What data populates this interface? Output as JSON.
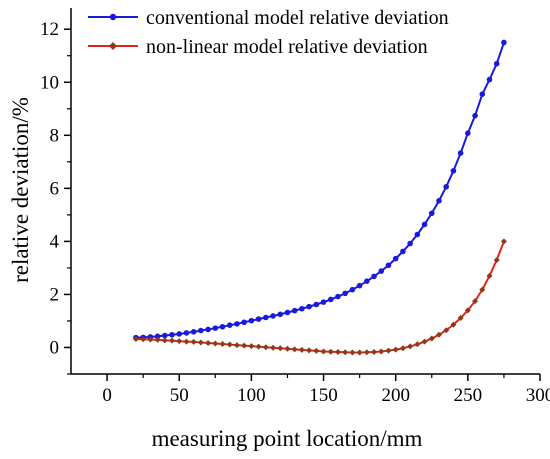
{
  "chart_data": {
    "type": "line",
    "xlabel": "measuring point location/mm",
    "ylabel": "relative deviation/%",
    "xlim": [
      -25,
      300
    ],
    "ylim": [
      -1,
      12.8
    ],
    "xticks": [
      0,
      50,
      100,
      150,
      200,
      250,
      300
    ],
    "yticks": [
      0,
      2,
      4,
      6,
      8,
      10,
      12
    ],
    "xtick_labels": [
      "0",
      "50",
      "100",
      "150",
      "200",
      "250",
      "300"
    ],
    "ytick_labels": [
      "0",
      "2",
      "4",
      "6",
      "8",
      "10",
      "12"
    ],
    "grid": false,
    "legend_position": "top-left",
    "series": [
      {
        "name": "conventional model relative deviation",
        "color": "#1a1adc",
        "marker": "circle",
        "x": [
          20,
          25,
          30,
          35,
          40,
          45,
          50,
          55,
          60,
          65,
          70,
          75,
          80,
          85,
          90,
          95,
          100,
          105,
          110,
          115,
          120,
          125,
          130,
          135,
          140,
          145,
          150,
          155,
          160,
          165,
          170,
          175,
          180,
          185,
          190,
          195,
          200,
          205,
          210,
          215,
          220,
          225,
          230,
          235,
          240,
          245,
          250,
          255,
          260,
          265,
          270,
          275
        ],
        "values": [
          0.37,
          0.38,
          0.4,
          0.42,
          0.45,
          0.48,
          0.51,
          0.55,
          0.59,
          0.64,
          0.68,
          0.73,
          0.78,
          0.84,
          0.89,
          0.95,
          1.01,
          1.07,
          1.13,
          1.19,
          1.25,
          1.32,
          1.39,
          1.46,
          1.54,
          1.62,
          1.71,
          1.81,
          1.92,
          2.04,
          2.18,
          2.33,
          2.5,
          2.68,
          2.88,
          3.1,
          3.35,
          3.62,
          3.92,
          4.26,
          4.64,
          5.06,
          5.53,
          6.06,
          6.66,
          7.33,
          8.08,
          8.74,
          9.55,
          10.1,
          10.7,
          11.5
        ]
      },
      {
        "name": "non-linear model relative deviation",
        "color": "#e0241b",
        "marker_color": "#8b3a1a",
        "marker": "diamond",
        "x": [
          20,
          25,
          30,
          35,
          40,
          45,
          50,
          55,
          60,
          65,
          70,
          75,
          80,
          85,
          90,
          95,
          100,
          105,
          110,
          115,
          120,
          125,
          130,
          135,
          140,
          145,
          150,
          155,
          160,
          165,
          170,
          175,
          180,
          185,
          190,
          195,
          200,
          205,
          210,
          215,
          220,
          225,
          230,
          235,
          240,
          245,
          250,
          255,
          260,
          265,
          270,
          275
        ],
        "values": [
          0.32,
          0.31,
          0.3,
          0.29,
          0.27,
          0.26,
          0.24,
          0.22,
          0.21,
          0.19,
          0.17,
          0.15,
          0.13,
          0.11,
          0.09,
          0.07,
          0.05,
          0.03,
          0.01,
          -0.01,
          -0.03,
          -0.05,
          -0.07,
          -0.09,
          -0.11,
          -0.13,
          -0.15,
          -0.16,
          -0.17,
          -0.18,
          -0.19,
          -0.19,
          -0.18,
          -0.17,
          -0.15,
          -0.12,
          -0.08,
          -0.03,
          0.04,
          0.12,
          0.22,
          0.34,
          0.48,
          0.65,
          0.86,
          1.11,
          1.4,
          1.75,
          2.18,
          2.7,
          3.3,
          4.0
        ]
      }
    ]
  }
}
